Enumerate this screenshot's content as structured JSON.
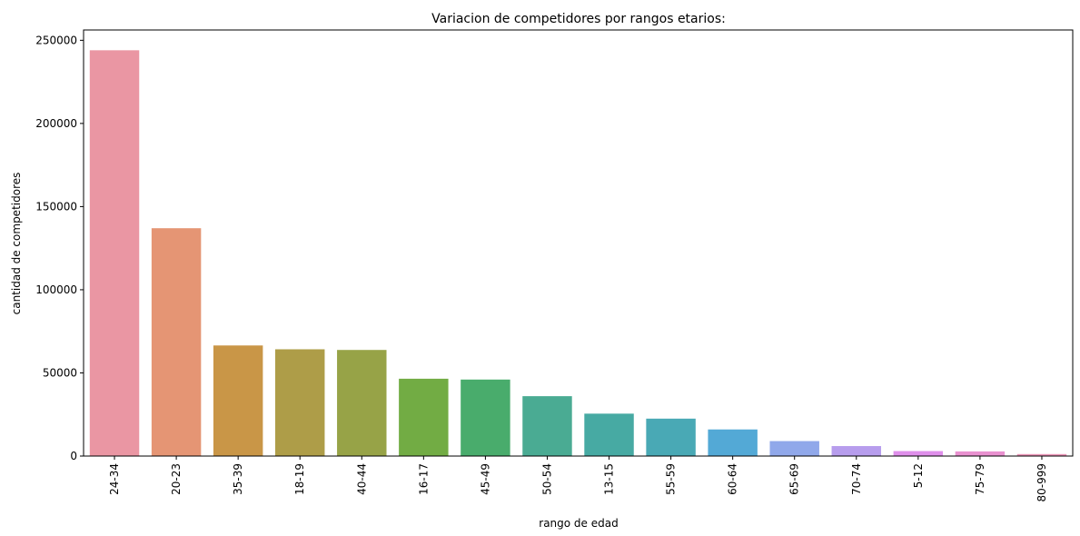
{
  "chart_data": {
    "type": "bar",
    "title": "Variacion de competidores por rangos etarios:",
    "xlabel": "rango de edad",
    "ylabel": "cantidad de competidores",
    "categories": [
      "24-34",
      "20-23",
      "35-39",
      "18-19",
      "40-44",
      "16-17",
      "45-49",
      "50-54",
      "13-15",
      "55-59",
      "60-64",
      "65-69",
      "70-74",
      "5-12",
      "75-79",
      "80-999"
    ],
    "values": [
      244000,
      137000,
      66500,
      64200,
      63800,
      46500,
      46000,
      36000,
      25500,
      22500,
      16000,
      9000,
      6000,
      3000,
      2800,
      1200
    ],
    "colors": [
      "#ea96a3",
      "#e59574",
      "#c99647",
      "#ae9d48",
      "#97a347",
      "#72ac44",
      "#49ac6c",
      "#4aab93",
      "#47aaa3",
      "#49a9b5",
      "#53a9d6",
      "#90a8ea",
      "#b79ded",
      "#df8feb",
      "#e991d0",
      "#ea95b7"
    ],
    "ylim": [
      0,
      256200
    ],
    "yticks": [
      0,
      50000,
      100000,
      150000,
      200000,
      250000
    ],
    "ytick_labels": [
      "0",
      "50000",
      "100000",
      "150000",
      "200000",
      "250000"
    ],
    "grid": false,
    "legend": "none"
  }
}
